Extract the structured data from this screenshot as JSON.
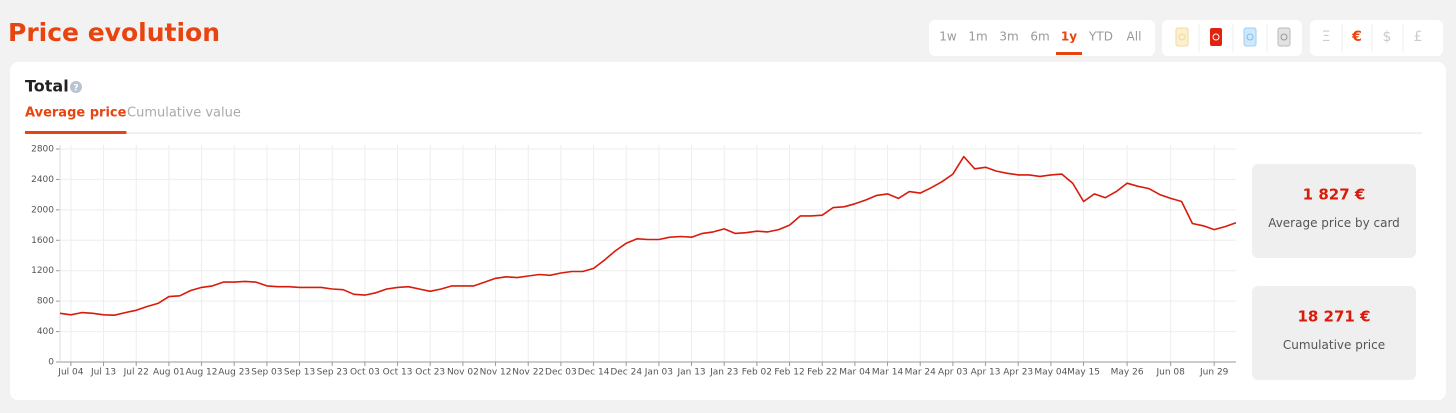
{
  "header": {
    "title": "Price evolution"
  },
  "time_ranges": [
    {
      "label": "1w"
    },
    {
      "label": "1m"
    },
    {
      "label": "3m"
    },
    {
      "label": "6m"
    },
    {
      "label": "1y",
      "active": true
    },
    {
      "label": "YTD"
    },
    {
      "label": "All"
    }
  ],
  "currencies": [
    {
      "label": "Ξ"
    },
    {
      "label": "€",
      "active": true
    },
    {
      "label": "$"
    },
    {
      "label": "£"
    }
  ],
  "card": {
    "title": "Total",
    "tabs": [
      {
        "label": "Average price",
        "active": true
      },
      {
        "label": "Cumulative value"
      }
    ]
  },
  "stats": [
    {
      "value": "1 827 €",
      "label": "Average price by card"
    },
    {
      "value": "18 271 €",
      "label": "Cumulative price"
    }
  ],
  "chart_data": {
    "type": "line",
    "color": "#d81b0b",
    "grid": true,
    "ylim": [
      0,
      2800
    ],
    "yticks": [
      0,
      400,
      800,
      1200,
      1600,
      2000,
      2400,
      2800
    ],
    "categories": [
      null,
      "Jul 04",
      null,
      null,
      "Jul 13",
      null,
      null,
      "Jul 22",
      null,
      null,
      "Aug 01",
      null,
      null,
      "Aug 12",
      null,
      null,
      "Aug 23",
      null,
      null,
      "Sep 03",
      null,
      null,
      "Sep 13",
      null,
      null,
      "Sep 23",
      null,
      null,
      "Oct 03",
      null,
      null,
      "Oct 13",
      null,
      null,
      "Oct 23",
      null,
      null,
      "Nov 02",
      null,
      null,
      "Nov 12",
      null,
      null,
      "Nov 22",
      null,
      null,
      "Dec 03",
      null,
      null,
      "Dec 14",
      null,
      null,
      "Dec 24",
      null,
      null,
      "Jan 03",
      null,
      null,
      "Jan 13",
      null,
      null,
      "Jan 23",
      null,
      null,
      "Feb 02",
      null,
      null,
      "Feb 12",
      null,
      null,
      "Feb 22",
      null,
      null,
      "Mar 04",
      null,
      null,
      "Mar 14",
      null,
      null,
      "Mar 24",
      null,
      null,
      "Apr 03",
      null,
      null,
      "Apr 13",
      null,
      null,
      "Apr 23",
      null,
      null,
      "May 04",
      null,
      null,
      "May 15",
      null,
      null,
      null,
      "May 26",
      null,
      null,
      null,
      "Jun 08",
      null,
      null,
      null,
      "Jun 29",
      null,
      null
    ],
    "values": [
      640,
      620,
      650,
      640,
      620,
      615,
      650,
      680,
      730,
      770,
      860,
      870,
      940,
      980,
      1000,
      1050,
      1050,
      1060,
      1050,
      1000,
      990,
      990,
      980,
      980,
      980,
      960,
      950,
      890,
      880,
      910,
      960,
      980,
      990,
      960,
      930,
      960,
      1000,
      1000,
      1000,
      1050,
      1100,
      1120,
      1110,
      1130,
      1150,
      1140,
      1170,
      1190,
      1190,
      1230,
      1340,
      1460,
      1560,
      1620,
      1610,
      1610,
      1640,
      1650,
      1640,
      1690,
      1710,
      1750,
      1690,
      1700,
      1720,
      1710,
      1740,
      1800,
      1920,
      1920,
      1930,
      2030,
      2040,
      2080,
      2130,
      2190,
      2210,
      2150,
      2240,
      2220,
      2290,
      2370,
      2470,
      2700,
      2540,
      2560,
      2510,
      2480,
      2460,
      2460,
      2440,
      2460,
      2470,
      2350,
      2110,
      2210,
      2160,
      2240,
      2350,
      2310,
      2280,
      2200,
      2150,
      2110,
      1820,
      1790,
      1740,
      1780,
      1830
    ]
  }
}
